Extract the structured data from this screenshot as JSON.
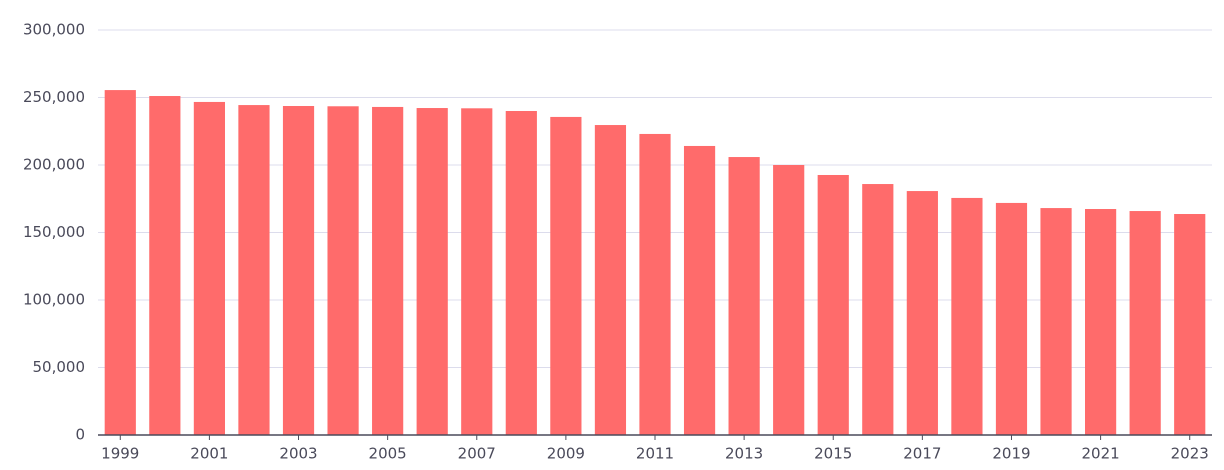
{
  "chart_data": {
    "type": "bar",
    "categories": [
      "1999",
      null,
      "2001",
      null,
      "2003",
      null,
      "2005",
      null,
      "2007",
      null,
      "2009",
      null,
      "2011",
      null,
      "2013",
      null,
      "2015",
      null,
      "2017",
      null,
      "2019",
      null,
      "2021",
      null,
      "2023"
    ],
    "values": [
      255500,
      251100,
      246700,
      244400,
      243700,
      243500,
      243000,
      242200,
      242000,
      240000,
      235600,
      229600,
      223000,
      214100,
      205900,
      200000,
      192600,
      185900,
      180700,
      175600,
      171900,
      168100,
      167400,
      165900,
      163700
    ],
    "color": "#ff6b6b",
    "ylim": [
      0,
      300000
    ],
    "yticks": [
      0,
      {
        "value": 50000,
        "label": "50,000"
      },
      {
        "value": 100000,
        "label": "100,000"
      },
      {
        "value": 150000,
        "label": "150,000"
      },
      {
        "value": 200000,
        "label": "200,000"
      },
      {
        "value": 250000,
        "label": "250,000"
      },
      {
        "value": 300000,
        "label": "300,000"
      }
    ],
    "grid": true
  }
}
